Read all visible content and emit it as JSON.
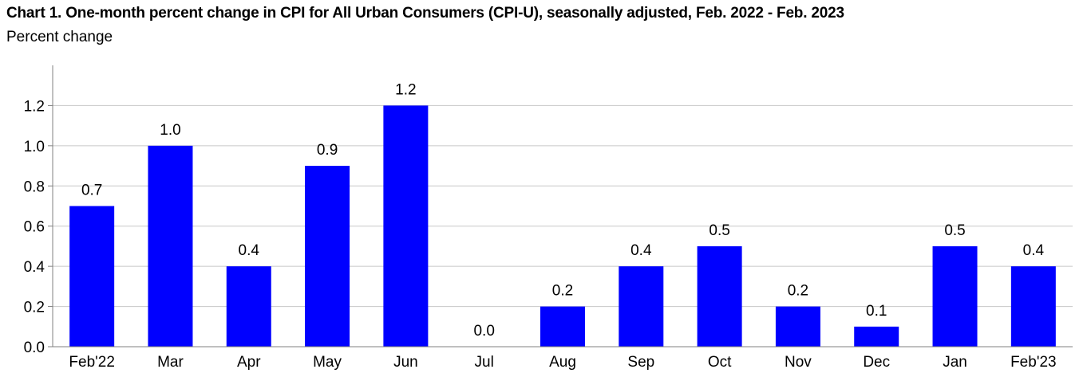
{
  "chart_data": {
    "type": "bar",
    "title": "Chart 1. One-month percent change in CPI for All Urban Consumers (CPI-U), seasonally adjusted, Feb. 2022 - Feb. 2023",
    "subtitle": "Percent change",
    "xlabel": "",
    "ylabel": "",
    "categories": [
      "Feb'22",
      "Mar",
      "Apr",
      "May",
      "Jun",
      "Jul",
      "Aug",
      "Sep",
      "Oct",
      "Nov",
      "Dec",
      "Jan",
      "Feb'23"
    ],
    "values": [
      0.7,
      1.0,
      0.4,
      0.9,
      1.2,
      0.0,
      0.2,
      0.4,
      0.5,
      0.2,
      0.1,
      0.5,
      0.4
    ],
    "data_labels": [
      "0.7",
      "1.0",
      "0.4",
      "0.9",
      "1.2",
      "0.0",
      "0.2",
      "0.4",
      "0.5",
      "0.2",
      "0.1",
      "0.5",
      "0.4"
    ],
    "y_ticks": [
      "0.0",
      "0.2",
      "0.4",
      "0.6",
      "0.8",
      "1.0",
      "1.2"
    ],
    "ylim": [
      0,
      1.4
    ],
    "grid": true,
    "legend": "none",
    "colors": {
      "bar": "#0000ff",
      "grid": "#c8c8c8",
      "axis": "#808080"
    }
  }
}
